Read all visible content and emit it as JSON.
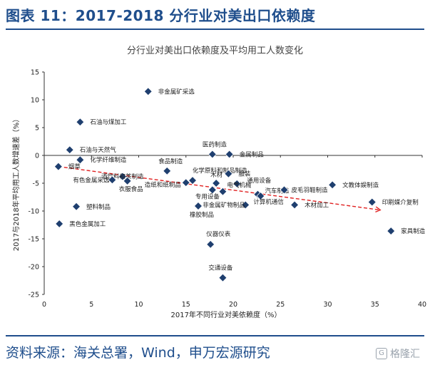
{
  "figure_title": "图表 11：2017-2018 分行业对美出口依赖度",
  "source_text": "资料来源：海关总署，Wind，申万宏源研究",
  "watermark": {
    "text": "格隆汇",
    "icon": "gelonghui-logo-icon"
  },
  "chart_data": {
    "type": "scatter",
    "title": "分行业对美出口依赖度及平均用工人数变化",
    "xlabel": "2017年不同行业对美依赖度（%）",
    "ylabel": "2017与2018年平均用工人数增速差（%）",
    "xlim": [
      0,
      40
    ],
    "ylim": [
      -25,
      15
    ],
    "x_ticks": [
      0,
      5,
      10,
      15,
      20,
      25,
      30,
      35,
      40
    ],
    "y_ticks": [
      15,
      10,
      5,
      0,
      -5,
      -10,
      -15,
      -20,
      -25
    ],
    "x_tick_labels": [
      "0",
      "5",
      "10",
      "15",
      "20",
      "25",
      "30",
      "35",
      "40"
    ],
    "y_tick_labels": [
      "15",
      "10",
      "5",
      "0",
      "-5",
      "-10",
      "-15",
      "-20",
      "-25"
    ],
    "grid": false,
    "marker_color": "#1f3f6f",
    "trend_color": "#e02020",
    "trend": {
      "x": [
        1.5,
        35.5
      ],
      "y": [
        -2.0,
        -9.8
      ]
    },
    "points": [
      {
        "name": "非金属矿采选",
        "x": 11.0,
        "y": 11.5
      },
      {
        "name": "石油与煤加工",
        "x": 3.8,
        "y": 6.0
      },
      {
        "name": "石油与天然气",
        "x": 2.7,
        "y": 1.0
      },
      {
        "name": "化学纤维制造",
        "x": 3.8,
        "y": -0.8
      },
      {
        "name": "烟草",
        "x": 1.5,
        "y": -2.0
      },
      {
        "name": "医药制造",
        "x": 17.8,
        "y": 0.2
      },
      {
        "name": "金属制品",
        "x": 19.6,
        "y": 0.2
      },
      {
        "name": "酒饮料和茶制造",
        "x": 8.3,
        "y": -3.8
      },
      {
        "name": "有色金属采选",
        "x": 7.2,
        "y": -4.4
      },
      {
        "name": "衣服食品",
        "x": 8.8,
        "y": -4.6
      },
      {
        "name": "食品制造",
        "x": 13.0,
        "y": -2.8
      },
      {
        "name": "造纸和纸制品",
        "x": 15.0,
        "y": -4.9
      },
      {
        "name": "化学原料和制品制造",
        "x": 15.7,
        "y": -4.5
      },
      {
        "name": "服装",
        "x": 19.5,
        "y": -3.3
      },
      {
        "name": "木材",
        "x": 18.2,
        "y": -5.0
      },
      {
        "name": "通用设备",
        "x": 20.4,
        "y": -5.1
      },
      {
        "name": "电气机械",
        "x": 18.9,
        "y": -6.5
      },
      {
        "name": "专用设备",
        "x": 17.8,
        "y": -6.2
      },
      {
        "name": "汽车制造",
        "x": 22.6,
        "y": -7.0
      },
      {
        "name": "计算机通信",
        "x": 22.9,
        "y": -7.3
      },
      {
        "name": "皮毛羽鞋制造",
        "x": 25.4,
        "y": -6.2
      },
      {
        "name": "文教体娱制造",
        "x": 30.5,
        "y": -5.3
      },
      {
        "name": "印刷媒介复制",
        "x": 34.7,
        "y": -8.4
      },
      {
        "name": "木材加工",
        "x": 26.5,
        "y": -8.9
      },
      {
        "name": "非金属矿物制品",
        "x": 21.3,
        "y": -8.9
      },
      {
        "name": "橡胶制品",
        "x": 16.3,
        "y": -9.1
      },
      {
        "name": "塑料制品",
        "x": 3.4,
        "y": -9.2
      },
      {
        "name": "黑色金属加工",
        "x": 1.6,
        "y": -12.3
      },
      {
        "name": "家具制造",
        "x": 36.7,
        "y": -13.6
      },
      {
        "name": "仪器仪表",
        "x": 17.6,
        "y": -16.0
      },
      {
        "name": "交通设备",
        "x": 18.9,
        "y": -22.0
      }
    ]
  }
}
